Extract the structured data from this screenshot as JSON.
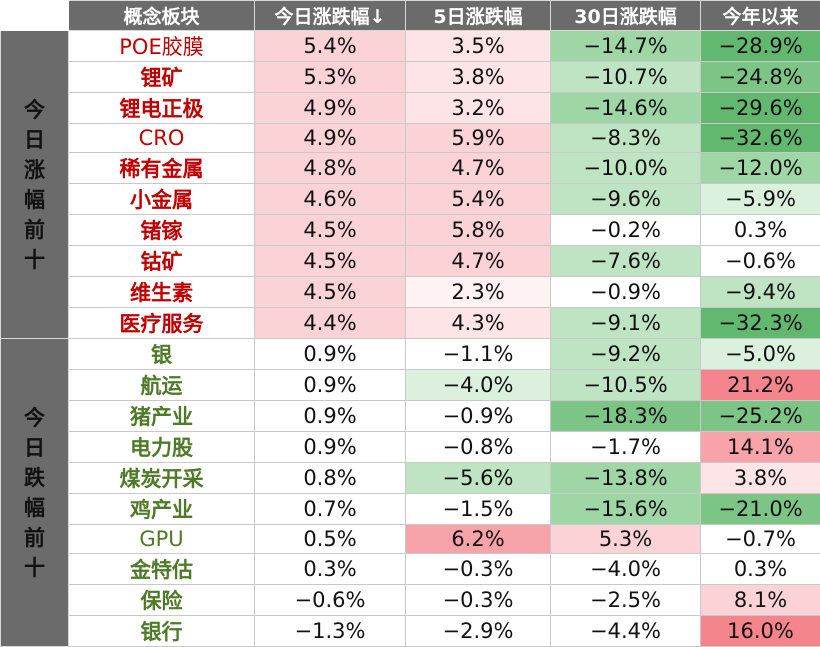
{
  "colors": {
    "header_bg": "#6b6b6b",
    "header_text": "#ffffff",
    "up_text": "#c00000",
    "down_text": "#4f7a28",
    "red_scale": [
      "#fff2f3",
      "#fde5e7",
      "#fbd3d6",
      "#f8a3a9",
      "#f4858c"
    ],
    "green_scale": [
      "#f2faf3",
      "#dbf0dd",
      "#bfe4c3",
      "#9fd6a5",
      "#7cc587",
      "#62b86f"
    ],
    "neutral": "#ffffff"
  },
  "table": {
    "header": {
      "name": "概念板块",
      "d1": "今日涨跌幅↓",
      "d5": "5日涨跌幅",
      "d30": "30日涨跌幅",
      "ytd": "今年以来"
    },
    "groups": [
      {
        "label": "今日涨幅前十",
        "direction": "up",
        "rows": [
          {
            "name": "POE胶膜",
            "d1": "5.4%",
            "d5": "3.5%",
            "d30": "−14.7%",
            "ytd": "−28.9%",
            "tone": {
              "d1": "r2",
              "d5": "r1",
              "d30": "g3",
              "ytd": "g5"
            }
          },
          {
            "name": "锂矿",
            "d1": "5.3%",
            "d5": "3.8%",
            "d30": "−10.7%",
            "ytd": "−24.8%",
            "tone": {
              "d1": "r2",
              "d5": "r1",
              "d30": "g2",
              "ytd": "g4"
            }
          },
          {
            "name": "锂电正极",
            "d1": "4.9%",
            "d5": "3.2%",
            "d30": "−14.6%",
            "ytd": "−29.6%",
            "tone": {
              "d1": "r2",
              "d5": "r1",
              "d30": "g3",
              "ytd": "g5"
            }
          },
          {
            "name": "CRO",
            "d1": "4.9%",
            "d5": "5.9%",
            "d30": "−8.3%",
            "ytd": "−32.6%",
            "tone": {
              "d1": "r2",
              "d5": "r2",
              "d30": "g2",
              "ytd": "g5"
            }
          },
          {
            "name": "稀有金属",
            "d1": "4.8%",
            "d5": "4.7%",
            "d30": "−10.0%",
            "ytd": "−12.0%",
            "tone": {
              "d1": "r2",
              "d5": "r2",
              "d30": "g2",
              "ytd": "g3"
            }
          },
          {
            "name": "小金属",
            "d1": "4.6%",
            "d5": "5.4%",
            "d30": "−9.6%",
            "ytd": "−5.9%",
            "tone": {
              "d1": "r2",
              "d5": "r2",
              "d30": "g2",
              "ytd": "g1"
            }
          },
          {
            "name": "锗镓",
            "d1": "4.5%",
            "d5": "5.8%",
            "d30": "−0.2%",
            "ytd": "0.3%",
            "tone": {
              "d1": "r2",
              "d5": "r2",
              "d30": "n",
              "ytd": "n"
            }
          },
          {
            "name": "钴矿",
            "d1": "4.5%",
            "d5": "4.7%",
            "d30": "−7.6%",
            "ytd": "−0.6%",
            "tone": {
              "d1": "r2",
              "d5": "r2",
              "d30": "g2",
              "ytd": "n"
            }
          },
          {
            "name": "维生素",
            "d1": "4.5%",
            "d5": "2.3%",
            "d30": "−0.9%",
            "ytd": "−9.4%",
            "tone": {
              "d1": "r2",
              "d5": "r0",
              "d30": "n",
              "ytd": "g2"
            }
          },
          {
            "name": "医疗服务",
            "d1": "4.4%",
            "d5": "4.3%",
            "d30": "−9.1%",
            "ytd": "−32.3%",
            "tone": {
              "d1": "r2",
              "d5": "r1",
              "d30": "g2",
              "ytd": "g5"
            }
          }
        ]
      },
      {
        "label": "今日跌幅前十",
        "direction": "down",
        "rows": [
          {
            "name": "银",
            "d1": "0.9%",
            "d5": "−1.1%",
            "d30": "−9.2%",
            "ytd": "−5.0%",
            "tone": {
              "d1": "n",
              "d5": "n",
              "d30": "g2",
              "ytd": "g1"
            }
          },
          {
            "name": "航运",
            "d1": "0.9%",
            "d5": "−4.0%",
            "d30": "−10.5%",
            "ytd": "21.2%",
            "tone": {
              "d1": "n",
              "d5": "g1",
              "d30": "g2",
              "ytd": "r4"
            }
          },
          {
            "name": "猪产业",
            "d1": "0.9%",
            "d5": "−0.9%",
            "d30": "−18.3%",
            "ytd": "−25.2%",
            "tone": {
              "d1": "n",
              "d5": "n",
              "d30": "g4",
              "ytd": "g4"
            }
          },
          {
            "name": "电力股",
            "d1": "0.9%",
            "d5": "−0.8%",
            "d30": "−1.7%",
            "ytd": "14.1%",
            "tone": {
              "d1": "n",
              "d5": "n",
              "d30": "n",
              "ytd": "r3"
            }
          },
          {
            "name": "煤炭开采",
            "d1": "0.8%",
            "d5": "−5.6%",
            "d30": "−13.8%",
            "ytd": "3.8%",
            "tone": {
              "d1": "n",
              "d5": "g2",
              "d30": "g3",
              "ytd": "r1"
            }
          },
          {
            "name": "鸡产业",
            "d1": "0.7%",
            "d5": "−1.5%",
            "d30": "−15.6%",
            "ytd": "−21.0%",
            "tone": {
              "d1": "n",
              "d5": "n",
              "d30": "g3",
              "ytd": "g4"
            }
          },
          {
            "name": "GPU",
            "d1": "0.5%",
            "d5": "6.2%",
            "d30": "5.3%",
            "ytd": "−0.7%",
            "tone": {
              "d1": "n",
              "d5": "r3",
              "d30": "r2",
              "ytd": "n"
            }
          },
          {
            "name": "金特估",
            "d1": "0.3%",
            "d5": "−0.3%",
            "d30": "−4.0%",
            "ytd": "0.3%",
            "tone": {
              "d1": "n",
              "d5": "n",
              "d30": "n",
              "ytd": "n"
            }
          },
          {
            "name": "保险",
            "d1": "−0.6%",
            "d5": "−0.3%",
            "d30": "−2.5%",
            "ytd": "8.1%",
            "tone": {
              "d1": "n",
              "d5": "n",
              "d30": "n",
              "ytd": "r2"
            }
          },
          {
            "name": "银行",
            "d1": "−1.3%",
            "d5": "−2.9%",
            "d30": "−4.4%",
            "ytd": "16.0%",
            "tone": {
              "d1": "n",
              "d5": "n",
              "d30": "n",
              "ytd": "r4"
            }
          }
        ]
      }
    ]
  }
}
